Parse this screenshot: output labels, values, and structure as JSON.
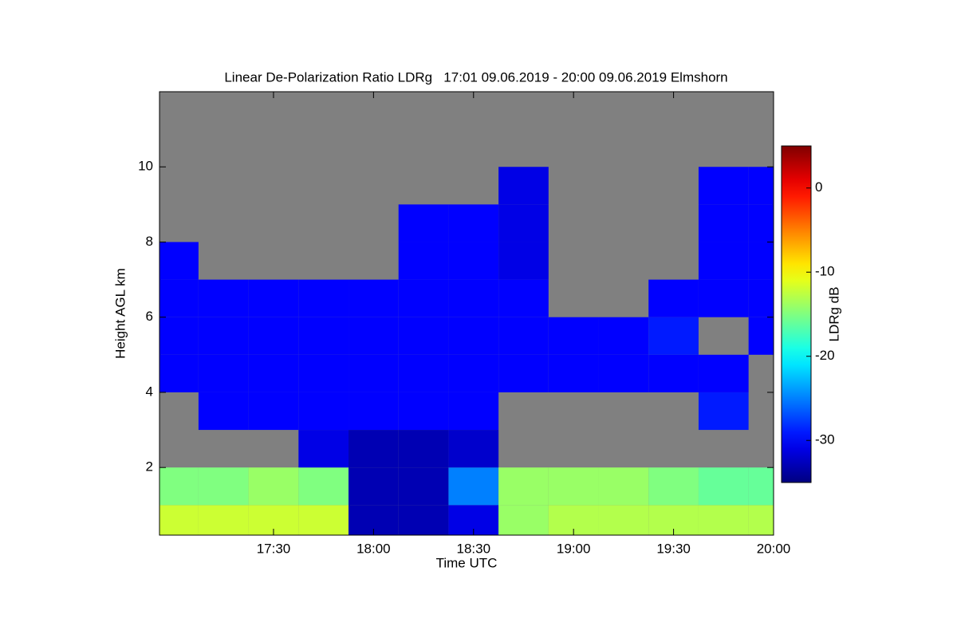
{
  "chart_data": {
    "type": "heatmap",
    "title": "Linear De-Polarization Ratio LDRg   17:01 09.06.2019 - 20:00 09.06.2019 Elmshorn",
    "x_label": "Time UTC",
    "y_label": "Height AGL km",
    "colorbar_label": "LDRg dB",
    "colormap": "jet",
    "x": [
      17.0,
      17.25,
      17.5,
      17.75,
      18.0,
      18.25,
      18.5,
      18.75,
      19.0,
      19.25,
      19.5,
      19.75,
      20.0
    ],
    "y": [
      0.5,
      1.5,
      2.5,
      3.5,
      4.5,
      5.5,
      6.5,
      7.5,
      8.5,
      9.5,
      10.5,
      11.5
    ],
    "z": [
      [
        -12,
        -12,
        -12,
        -12,
        -33,
        -33,
        -31,
        -14,
        -13,
        -13,
        -13,
        -13,
        -13
      ],
      [
        -15,
        -15,
        -14,
        -15,
        -33,
        -33,
        -25,
        -14,
        -14,
        -14,
        -15,
        -16,
        -16
      ],
      [
        null,
        null,
        null,
        -31,
        -33,
        -33,
        -32,
        null,
        null,
        null,
        null,
        null,
        null
      ],
      [
        null,
        -30,
        -30,
        -30,
        -30,
        -30,
        -30,
        null,
        null,
        null,
        null,
        -29,
        null
      ],
      [
        -30,
        -30,
        -30,
        -30,
        -30,
        -30,
        -30,
        -30,
        -30,
        -30,
        -30,
        -30,
        null
      ],
      [
        -30,
        -30,
        -30,
        -30,
        -30,
        -30,
        -30,
        -30,
        -30,
        -30,
        -29,
        null,
        -30
      ],
      [
        -30,
        -30,
        -30,
        -30,
        -30,
        -30,
        -30,
        -30,
        null,
        null,
        -30,
        -30,
        -30
      ],
      [
        -30,
        null,
        null,
        null,
        null,
        -30,
        -30,
        -31,
        null,
        null,
        null,
        -30,
        -30
      ],
      [
        null,
        null,
        null,
        null,
        null,
        -30,
        -30,
        -31,
        null,
        null,
        null,
        -30,
        -30
      ],
      [
        null,
        null,
        null,
        null,
        null,
        null,
        null,
        -31,
        null,
        null,
        null,
        -30,
        -30
      ],
      [
        null,
        null,
        null,
        null,
        null,
        null,
        null,
        null,
        null,
        null,
        null,
        null,
        null
      ],
      [
        null,
        null,
        null,
        null,
        null,
        null,
        null,
        null,
        null,
        null,
        null,
        null,
        null
      ]
    ],
    "xlim": [
      16.93,
      20.0
    ],
    "xticks": [
      {
        "value": 17.5,
        "label": "17:30"
      },
      {
        "value": 18.0,
        "label": "18:00"
      },
      {
        "value": 18.5,
        "label": "18:30"
      },
      {
        "value": 19.0,
        "label": "19:00"
      },
      {
        "value": 19.5,
        "label": "19:30"
      },
      {
        "value": 20.0,
        "label": "20:00"
      }
    ],
    "ylim": [
      0.2,
      12
    ],
    "yticks": [
      2,
      4,
      6,
      8,
      10
    ],
    "zlim": [
      -35,
      5
    ],
    "zticks": [
      0,
      -10,
      -20,
      -30
    ]
  }
}
